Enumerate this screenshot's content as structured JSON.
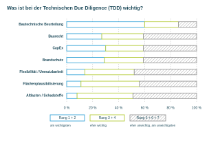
{
  "chart_data": {
    "type": "stacked-bar-horizontal",
    "title": "Was ist bei der Technischen Due Diligence (TDD) wichtig?",
    "categories": [
      "Bautechnische Beurteilung",
      "Baurecht",
      "CapEx",
      "Brandschutz",
      "Flexibilität / Umnutzbarkeit",
      "Flächenplausibilisierung",
      "Altlasten / Schadstoffe"
    ],
    "series": [
      {
        "name": "Rang 1 + 2",
        "description": "am wichtigsten",
        "color": "#3aa6d8",
        "values": [
          60,
          27,
          30,
          29,
          14,
          11,
          8
        ]
      },
      {
        "name": "Rang 3 + 4",
        "description": "eher wichtig",
        "color": "#b5cc3c",
        "values": [
          26,
          32,
          29,
          30,
          38,
          45,
          43
        ]
      },
      {
        "name": "Rang 5 + 6 + 7",
        "description": "eher unwichtig, am unwichtigsten",
        "color": "#999999",
        "hatched": true,
        "values": [
          14,
          41,
          41,
          41,
          48,
          44,
          49
        ]
      }
    ],
    "xlim": [
      0,
      100
    ],
    "xticks": [
      {
        "value": 0,
        "label": "0 %"
      },
      {
        "value": 20,
        "label": "20 %"
      },
      {
        "value": 40,
        "label": "40 %"
      },
      {
        "value": 60,
        "label": "60 %"
      },
      {
        "value": 80,
        "label": "80 %"
      },
      {
        "value": 100,
        "label": "100 %"
      }
    ],
    "grid": true
  }
}
